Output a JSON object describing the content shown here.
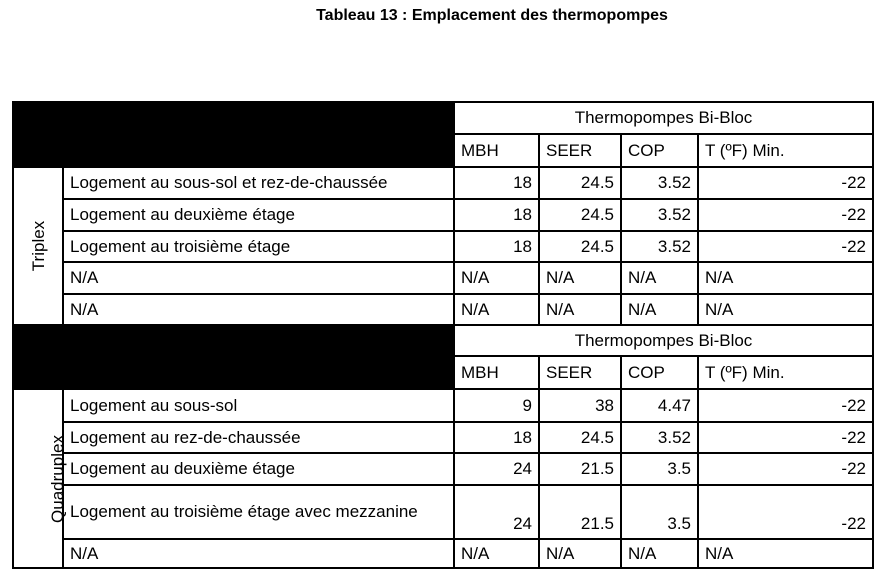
{
  "title": "Tableau 13 : Emplacement des thermopompes",
  "sections": [
    {
      "group": "Triplex",
      "header": "Thermopompes Bi-Bloc",
      "columns": [
        "MBH",
        "SEER",
        "COP",
        "T (ºF) Min."
      ],
      "rows": [
        {
          "label": "Logement au sous-sol et rez-de-chaussée",
          "values": [
            "18",
            "24.5",
            "3.52",
            "-22"
          ]
        },
        {
          "label": "Logement au deuxième étage",
          "values": [
            "18",
            "24.5",
            "3.52",
            "-22"
          ]
        },
        {
          "label": "Logement au troisième étage",
          "values": [
            "18",
            "24.5",
            "3.52",
            "-22"
          ]
        },
        {
          "label": "N/A",
          "values": [
            "N/A",
            "N/A",
            "N/A",
            "N/A"
          ]
        },
        {
          "label": "N/A",
          "values": [
            "N/A",
            "N/A",
            "N/A",
            "N/A"
          ]
        }
      ]
    },
    {
      "group": "Quadruplex",
      "header": "Thermopompes Bi-Bloc",
      "columns": [
        "MBH",
        "SEER",
        "COP",
        "T (ºF) Min."
      ],
      "rows": [
        {
          "label": "Logement au sous-sol",
          "values": [
            "9",
            "38",
            "4.47",
            "-22"
          ]
        },
        {
          "label": "Logement au rez-de-chaussée",
          "values": [
            "18",
            "24.5",
            "3.52",
            "-22"
          ]
        },
        {
          "label": "Logement au deuxième étage",
          "values": [
            "24",
            "21.5",
            "3.5",
            "-22"
          ]
        },
        {
          "label": "Logement au troisième étage avec mezzanine",
          "values": [
            "24",
            "21.5",
            "3.5",
            "-22"
          ]
        },
        {
          "label": "N/A",
          "values": [
            "N/A",
            "N/A",
            "N/A",
            "N/A"
          ]
        }
      ]
    }
  ]
}
